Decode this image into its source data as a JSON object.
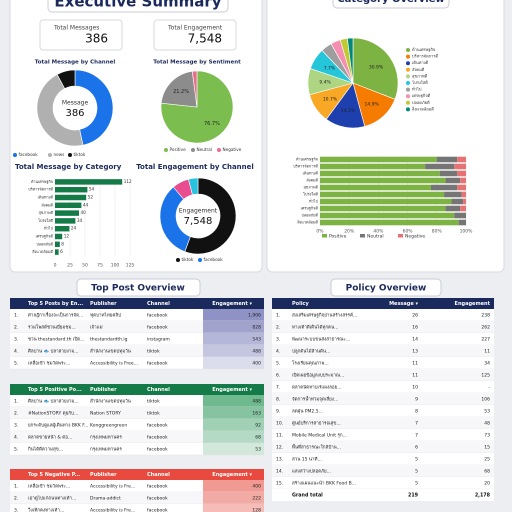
{
  "header": {
    "title": "Executive Summary"
  },
  "kpis": [
    {
      "label": "Total Messages",
      "value": "386"
    },
    {
      "label": "Total Engagement",
      "value": "7,548"
    }
  ],
  "chart_data": [
    {
      "type": "donut",
      "title": "Total Message by Channel",
      "center_label": "Message",
      "center_value": "386",
      "categories": [
        "facebook",
        "news",
        "tiktok"
      ],
      "values": [
        180,
        176,
        30
      ],
      "colors": [
        "#1a73e8",
        "#b0b0b0",
        "#111111"
      ]
    },
    {
      "type": "pie",
      "title": "Total Message by Sentiment",
      "categories": [
        "Positive",
        "Neutral",
        "Negative"
      ],
      "values": [
        76.7,
        21.2,
        2.1
      ],
      "value_labels": [
        "76.7%",
        "21.2%",
        null
      ],
      "colors": [
        "#7cbd4f",
        "#8c8c8c",
        "#ea6d8b"
      ]
    },
    {
      "type": "hbar",
      "title": "Total Message by Category",
      "categories": [
        "ด้านเศรษฐกิจ",
        "บริหารจัดการดี",
        "เดินทางดี",
        "สังคมดี",
        "สุขภาพดี",
        "โปร่งใสดี",
        "ทั่วไป",
        "เศรษฐกิจดี",
        "ปลอดภัยดี",
        "สิ่งแวดล้อมดี"
      ],
      "values": [
        112,
        54,
        52,
        44,
        40,
        34,
        24,
        12,
        8,
        6
      ],
      "color": "#137a48",
      "xlim": [
        0,
        125
      ],
      "xticks": [
        0,
        25,
        50,
        75,
        100,
        125
      ]
    },
    {
      "type": "donut",
      "title": "Total Engagement by Channel",
      "center_label": "Engagement",
      "center_value": "7,548",
      "categories": [
        "tiktok",
        "facebook",
        null,
        null
      ],
      "values": [
        4200,
        2500,
        543,
        305
      ],
      "colors": [
        "#111111",
        "#1a73e8",
        "#e94c8f",
        "#27c3e0"
      ]
    },
    {
      "type": "pie",
      "title": "Category Overview",
      "categories": [
        "ด้านเศรษฐกิจ",
        "บริหารจัดการดี",
        "เดินทางดี",
        "สังคมดี",
        "สุขภาพดี",
        "โปร่งใสดี",
        "ทั่วไป",
        "เศรษฐกิจดี",
        "ปลอดภัยดี",
        "สิ่งแวดล้อมดี"
      ],
      "values": [
        30.9,
        14.9,
        14.3,
        10.7,
        9.4,
        7.7,
        4.0,
        3.5,
        2.6,
        2.0
      ],
      "value_labels": [
        "30.9%",
        "14.9%",
        "14.3%",
        "10.7%",
        "9.4%",
        "7.7%",
        null,
        null,
        null,
        null
      ],
      "colors": [
        "#7cb342",
        "#f57c00",
        "#1e40af",
        "#f9a825",
        "#aed581",
        "#26c6da",
        "#9e9e9e",
        "#f48fb1",
        "#c0ca33",
        "#00897b"
      ]
    },
    {
      "type": "stacked_hbar",
      "categories": [
        "ด้านเศรษฐกิจ",
        "บริหารจัดการดี",
        "เดินทางดี",
        "สังคมดี",
        "สุขภาพดี",
        "โปร่งใสดี",
        "ทั่วไป",
        "เศรษฐกิจดี",
        "ปลอดภัยดี",
        "สิ่งแวดล้อมดี"
      ],
      "series": [
        {
          "name": "Positive",
          "color": "#7cb342",
          "values": [
            80,
            72,
            82,
            86,
            76,
            85,
            90,
            86,
            92,
            95
          ]
        },
        {
          "name": "Neutral",
          "color": "#757575",
          "values": [
            14,
            20,
            12,
            10,
            18,
            12,
            8,
            10,
            8,
            5
          ]
        },
        {
          "name": "Negative",
          "color": "#e57373",
          "values": [
            6,
            8,
            6,
            4,
            6,
            3,
            2,
            4,
            0,
            0
          ]
        }
      ],
      "xlim": [
        0,
        100
      ],
      "xticks": [
        {
          "value": 0,
          "label": "0%"
        },
        {
          "value": 20,
          "label": "20%"
        },
        {
          "value": 40,
          "label": "40%"
        },
        {
          "value": 60,
          "label": "60%"
        },
        {
          "value": 80,
          "label": "80%"
        },
        {
          "value": 100,
          "label": "100%"
        }
      ]
    }
  ],
  "sections": {
    "top_post": "Top Post Overview",
    "policy": "Policy Overview"
  },
  "post_tables": [
    {
      "columns": [
        "Top 5 Posts by En...",
        "Publisher",
        "Channel",
        "Engagement ▾"
      ],
      "theme": "#1b2a5c",
      "shade": "#8f92c4",
      "rows": [
        [
          "1.",
          "ศาลฎีกาเรื่องจะเป็นการจัด...",
          "ฟุตบาทไทยคลิป",
          "facebook",
          "1,906"
        ],
        [
          "2.",
          "รวมโพสต์ชวนเยี่ยมชม...",
          "เจ้าแม่",
          "facebook",
          "828"
        ],
        [
          "3.",
          "ชวน thestandard.th เปิด...",
          "thestandardth.ig",
          "instagram",
          "543"
        ],
        [
          "4.",
          "ศิลปาน 🐟 ปลาสวยงาม...",
          "สำนักงานเขตปทุมวัน",
          "tiktok",
          "488"
        ],
        [
          "5.",
          "เหลือเข้า ชมวัดพระ...",
          "Accessibility is Free...",
          "facebook",
          "400"
        ]
      ]
    },
    {
      "columns": [
        "Top 5 Positive Po...",
        "Publisher",
        "Channel",
        "Engagement ▾"
      ],
      "theme": "#137a48",
      "shade": "#6fb98f",
      "rows": [
        [
          "1.",
          "ศิลปาน 🐟 ปลาสวยงาม...",
          "สำนักงานเขตปทุมวัน",
          "tiktok",
          "488"
        ],
        [
          "2.",
          "#NationSTORY คุยกับ...",
          "Nation STORY",
          "tiktok",
          "163"
        ],
        [
          "3.",
          "ยกระดับดูแลผู้เดินทาง BKK F...",
          "Konggreengreen",
          "facebook",
          "92"
        ],
        [
          "4.",
          "ตลาดขายหน้า & ต่อ...",
          "กรุงเทพมหานคร",
          "facebook",
          "68"
        ],
        [
          "5.",
          "กินได้ดีความสุข...",
          "กรุงเทพมหานคร",
          "facebook",
          "53"
        ]
      ]
    },
    {
      "columns": [
        "Top 5 Negative P...",
        "Publisher",
        "Channel",
        "Engagement ▾"
      ],
      "theme": "#e84a3f",
      "shade": "#f19a93",
      "rows": [
        [
          "1.",
          "เหลือเข้า ชมวัดพระ...",
          "Accessibility is Fre...",
          "facebook",
          "400"
        ],
        [
          "2.",
          "เอาดูไปแก่ถนนทางเท้า...",
          "Drama-addict",
          "facebook",
          "222"
        ],
        [
          "3.",
          "วิ่งเทิกคงทางเท้า...",
          "Accessibility is Fre...",
          "facebook",
          "128"
        ]
      ]
    }
  ],
  "policy_table": {
    "columns": [
      "Policy",
      "Message ▾",
      "Engagement"
    ],
    "theme": "#1b2a5c",
    "rows": [
      [
        "1.",
        "ส่งเสริมเศรษฐกิจย่านสร้างสรรค์...",
        "26",
        "238"
      ],
      [
        "2.",
        "ทางเท้าดีเดินได้ทุกคน...",
        "16",
        "262"
      ],
      [
        "3.",
        "พัฒนาระบบขนส่งสาธารณะ...",
        "14",
        "227"
      ],
      [
        "4.",
        "ปลูกต้นไม้ล้านต้น...",
        "13",
        "11"
      ],
      [
        "5.",
        "โรงเรียนคุณภาพ...",
        "11",
        "34"
      ],
      [
        "6.",
        "เปิดเผยข้อมูลงบประมาณ...",
        "11",
        "125"
      ],
      [
        "7.",
        "ตลาดนัดหาบเร่แผงลอย...",
        "10",
        "-"
      ],
      [
        "8.",
        "จัดการน้ำท่วมจุดเสี่ยง...",
        "9",
        "106"
      ],
      [
        "9.",
        "ลดฝุ่น PM2.5...",
        "8",
        "53"
      ],
      [
        "10.",
        "ศูนย์บริการสาธารณสุข...",
        "7",
        "48"
      ],
      [
        "11.",
        "Mobile Medical Unit รุก...",
        "7",
        "73"
      ],
      [
        "12.",
        "พื้นที่สาธารณะใกล้บ้าน...",
        "6",
        "15"
      ],
      [
        "13.",
        "สวน 15 นาที...",
        "5",
        "25"
      ],
      [
        "14.",
        "แสงสว่างปลอดภัย...",
        "5",
        "68"
      ],
      [
        "15.",
        "สร้างแผนแนะนำ BKK Food B...",
        "5",
        "20"
      ]
    ],
    "total": [
      "Grand total",
      "219",
      "2,178"
    ]
  }
}
